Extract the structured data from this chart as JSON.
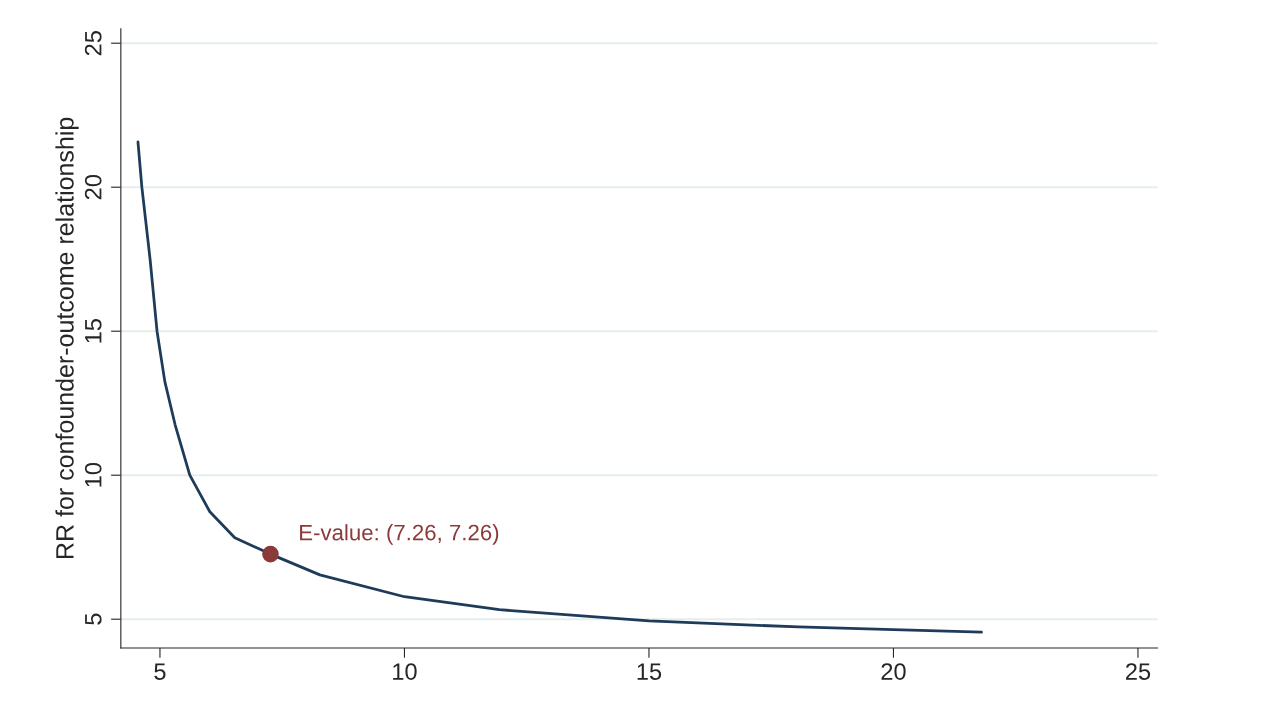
{
  "chart_data": {
    "type": "line",
    "ylabel": "RR for confounder-outcome relationship",
    "series": [
      {
        "color": "#1f3b5a",
        "x": [
          4.55,
          4.63,
          4.8,
          4.94,
          5.1,
          5.31,
          5.61,
          6.02,
          6.53,
          7.26,
          8.27,
          10.0,
          11.94,
          15.0,
          18.06,
          20.0,
          21.8
        ],
        "values": [
          21.57,
          20.0,
          17.47,
          15.0,
          13.25,
          11.75,
          10.0,
          8.73,
          7.83,
          7.26,
          6.54,
          5.78,
          5.33,
          4.94,
          4.73,
          4.64,
          4.55
        ]
      },
      {
        "type": "scatter",
        "color": "#8b3a3a",
        "marker": "circle",
        "x": [
          7.26
        ],
        "values": [
          7.26
        ]
      }
    ],
    "annotations": [
      {
        "text": "E-value: (7.26, 7.26)",
        "x": 7.26,
        "y": 7.26
      }
    ],
    "xlim": [
      4.2,
      25.4
    ],
    "ylim": [
      4,
      25.5
    ],
    "xticks": [
      5,
      10,
      15,
      20,
      25
    ],
    "yticks": [
      5,
      10,
      15,
      20,
      25
    ],
    "grid": "y"
  }
}
